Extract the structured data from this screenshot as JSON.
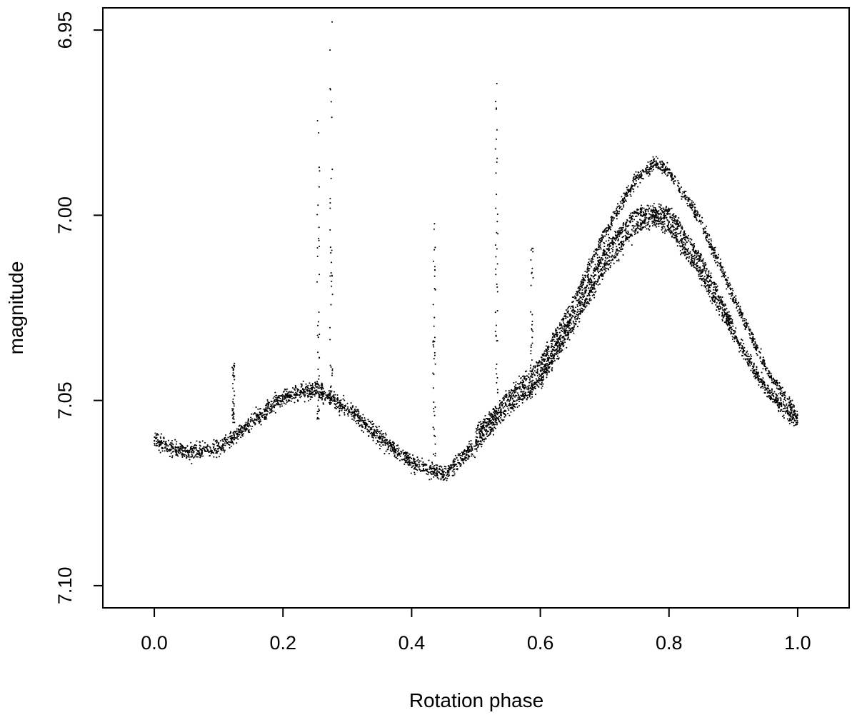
{
  "chart_data": {
    "type": "scatter",
    "title": "",
    "xlabel": "Rotation phase",
    "ylabel": "magnitude",
    "xlim": [
      -0.08,
      1.08
    ],
    "ylim": [
      7.106,
      6.944
    ],
    "y_inverted": true,
    "grid": false,
    "legend": "none",
    "point_color": "#000000",
    "x_ticks": [
      {
        "value": 0.0,
        "label": "0.0"
      },
      {
        "value": 0.2,
        "label": "0.2"
      },
      {
        "value": 0.4,
        "label": "0.4"
      },
      {
        "value": 0.6,
        "label": "0.6"
      },
      {
        "value": 0.8,
        "label": "0.8"
      },
      {
        "value": 1.0,
        "label": "1.0"
      }
    ],
    "y_ticks": [
      {
        "value": 6.95,
        "label": "6.95"
      },
      {
        "value": 7.0,
        "label": "7.00"
      },
      {
        "value": 7.05,
        "label": "7.05"
      },
      {
        "value": 7.1,
        "label": "7.10"
      }
    ],
    "branches": [
      {
        "x": [
          0.0,
          0.05,
          0.1,
          0.15,
          0.2,
          0.25,
          0.3,
          0.35,
          0.4,
          0.45,
          0.5,
          0.55,
          0.6,
          0.65,
          0.7,
          0.75,
          0.78,
          0.8,
          0.85,
          0.9,
          0.95,
          1.0
        ],
        "y": [
          7.061,
          7.064,
          7.063,
          7.056,
          7.049,
          7.047,
          7.052,
          7.06,
          7.067,
          7.07,
          7.062,
          7.052,
          7.045,
          7.03,
          7.014,
          7.003,
          7.001,
          7.003,
          7.016,
          7.032,
          7.047,
          7.056
        ]
      },
      {
        "x": [
          0.5,
          0.55,
          0.6,
          0.65,
          0.7,
          0.75,
          0.78,
          0.8,
          0.85,
          0.9,
          0.95,
          1.0
        ],
        "y": [
          7.059,
          7.049,
          7.04,
          7.024,
          7.005,
          6.99,
          6.986,
          6.988,
          7.002,
          7.022,
          7.041,
          7.054
        ]
      },
      {
        "x": [
          0.6,
          0.65,
          0.7,
          0.75,
          0.8,
          0.85,
          0.9
        ],
        "y": [
          7.043,
          7.027,
          7.01,
          6.999,
          6.999,
          7.012,
          7.03
        ]
      }
    ],
    "spikes": [
      {
        "x": 0.255,
        "y_from": 7.055,
        "y_to": 6.97
      },
      {
        "x": 0.275,
        "y_from": 7.05,
        "y_to": 6.947
      },
      {
        "x": 0.435,
        "y_from": 7.065,
        "y_to": 7.0
      },
      {
        "x": 0.532,
        "y_from": 7.048,
        "y_to": 6.96
      },
      {
        "x": 0.587,
        "y_from": 7.046,
        "y_to": 7.008
      },
      {
        "x": 0.123,
        "y_from": 7.056,
        "y_to": 7.04
      }
    ]
  }
}
